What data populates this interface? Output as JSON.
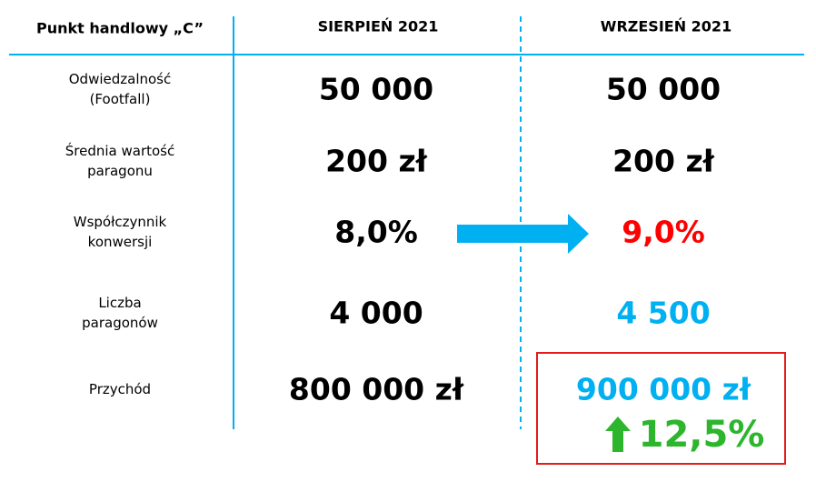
{
  "header": {
    "title": "Punkt handlowy „C”",
    "columns": [
      "SIERPIEŃ 2021",
      "WRZESIEŃ 2021"
    ]
  },
  "table": {
    "rows": [
      {
        "label": [
          "Odwiedzalność",
          "(Footfall)"
        ],
        "values": [
          "50 000",
          "50 000"
        ],
        "colors": [
          "#000000",
          "#000000"
        ]
      },
      {
        "label": [
          "Średnia wartość",
          "paragonu"
        ],
        "values": [
          "200 zł",
          "200 zł"
        ],
        "colors": [
          "#000000",
          "#000000"
        ]
      },
      {
        "label": [
          "Współczynnik",
          "konwersji"
        ],
        "values": [
          "8,0%",
          "9,0%"
        ],
        "colors": [
          "#000000",
          "#ff0000"
        ]
      },
      {
        "label": [
          "Liczba",
          "paragonów"
        ],
        "values": [
          "4 000",
          "4 500"
        ],
        "colors": [
          "#000000",
          "#00b0f0"
        ]
      },
      {
        "label": [
          "Przychód"
        ],
        "values": [
          "800 000 zł",
          "900 000 zł"
        ],
        "colors": [
          "#000000",
          "#00b0f0"
        ]
      }
    ]
  },
  "change": "12,5%"
}
